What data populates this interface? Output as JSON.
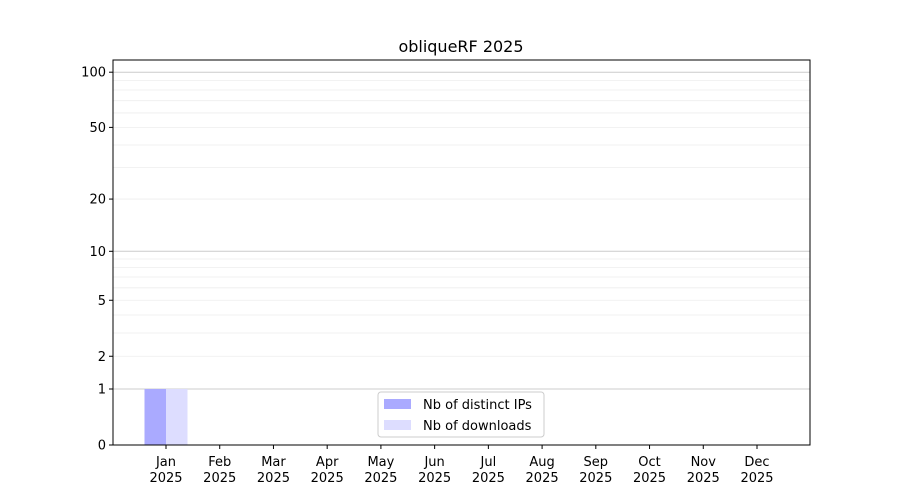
{
  "chart_data": {
    "type": "bar",
    "title": "obliqueRF 2025",
    "xlabel": "",
    "ylabel": "",
    "y_scale": "log(1+y)",
    "ylim": [
      0,
      116
    ],
    "y_ticks": [
      0,
      1,
      2,
      5,
      10,
      20,
      50,
      100
    ],
    "y_tick_labels": [
      "0",
      "1",
      "2",
      "5",
      "10",
      "20",
      "50",
      "100"
    ],
    "grid": true,
    "legend_position": "bottom-center",
    "categories": [
      "Jan\n2025",
      "Feb\n2025",
      "Mar\n2025",
      "Apr\n2025",
      "May\n2025",
      "Jun\n2025",
      "Jul\n2025",
      "Aug\n2025",
      "Sep\n2025",
      "Oct\n2025",
      "Nov\n2025",
      "Dec\n2025"
    ],
    "series": [
      {
        "name": "Nb of distinct IPs",
        "color": "#aaaaff",
        "values": [
          1,
          0,
          0,
          0,
          0,
          0,
          0,
          0,
          0,
          0,
          0,
          0
        ]
      },
      {
        "name": "Nb of downloads",
        "color": "#ddddff",
        "values": [
          1,
          0,
          0,
          0,
          0,
          0,
          0,
          0,
          0,
          0,
          0,
          0
        ]
      }
    ]
  }
}
